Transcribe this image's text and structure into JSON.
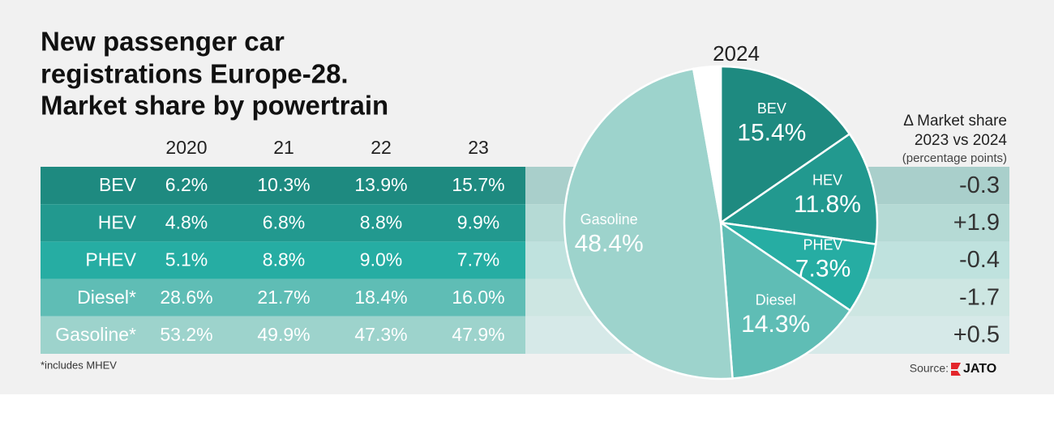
{
  "title": [
    "New passenger car",
    "registrations Europe-28.",
    "Market share by powertrain"
  ],
  "table": {
    "columns": [
      "2020",
      "21",
      "22",
      "23"
    ],
    "rows": [
      {
        "label": "BEV",
        "values": [
          "6.2%",
          "10.3%",
          "13.9%",
          "15.7%"
        ],
        "delta": "-0.3"
      },
      {
        "label": "HEV",
        "values": [
          "4.8%",
          "6.8%",
          "8.8%",
          "9.9%"
        ],
        "delta": "+1.9"
      },
      {
        "label": "PHEV",
        "values": [
          "5.1%",
          "8.8%",
          "9.0%",
          "7.7%"
        ],
        "delta": "-0.4"
      },
      {
        "label": "Diesel*",
        "values": [
          "28.6%",
          "21.7%",
          "18.4%",
          "16.0%"
        ],
        "delta": "-1.7"
      },
      {
        "label": "Gasoline*",
        "values": [
          "53.2%",
          "49.9%",
          "47.3%",
          "47.9%"
        ],
        "delta": "+0.5"
      }
    ],
    "delta_header": [
      "Δ Market share",
      "2023 vs 2024",
      "(percentage points)"
    ]
  },
  "footnote": "*includes MHEV",
  "source": {
    "label": "Source:",
    "logo": "JATO"
  },
  "chart_data": {
    "type": "pie",
    "title": "2024",
    "categories": [
      "BEV",
      "HEV",
      "PHEV",
      "Diesel",
      "Gasoline",
      null
    ],
    "values": [
      15.4,
      11.8,
      7.3,
      14.3,
      48.4,
      2.8
    ],
    "value_labels": [
      "15.4%",
      "11.8%",
      "7.3%",
      "14.3%",
      "48.4%",
      null
    ],
    "colors": [
      "#1e8a80",
      "#22998f",
      "#26ada3",
      "#5fbdb5",
      "#9dd3cc",
      "#ffffff"
    ]
  }
}
